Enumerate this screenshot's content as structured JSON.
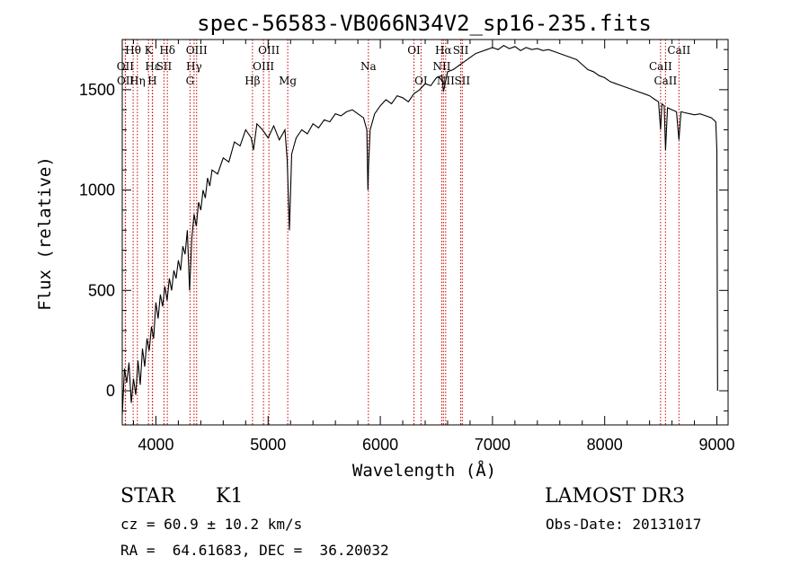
{
  "chart_data": {
    "type": "line",
    "title": "spec-56583-VB066N34V2_sp16-235.fits",
    "xlabel": "Wavelength (Å)",
    "ylabel": "Flux (relative)",
    "xlim": [
      3700,
      9100
    ],
    "ylim": [
      -170,
      1750
    ],
    "x_ticks": [
      4000,
      5000,
      6000,
      7000,
      8000,
      9000
    ],
    "y_ticks": [
      0,
      500,
      1000,
      1500
    ],
    "x_tick_labels": [
      "4000",
      "5000",
      "6000",
      "7000",
      "8000",
      "9000"
    ],
    "y_tick_labels": [
      "0",
      "500",
      "1000",
      "1500"
    ],
    "series": [
      {
        "name": "spectrum",
        "points": [
          [
            3700,
            -120
          ],
          [
            3720,
            110
          ],
          [
            3740,
            40
          ],
          [
            3760,
            140
          ],
          [
            3780,
            -60
          ],
          [
            3800,
            60
          ],
          [
            3820,
            -20
          ],
          [
            3840,
            150
          ],
          [
            3860,
            30
          ],
          [
            3880,
            210
          ],
          [
            3900,
            120
          ],
          [
            3920,
            260
          ],
          [
            3940,
            200
          ],
          [
            3960,
            320
          ],
          [
            3980,
            260
          ],
          [
            4000,
            440
          ],
          [
            4020,
            360
          ],
          [
            4040,
            480
          ],
          [
            4060,
            420
          ],
          [
            4080,
            520
          ],
          [
            4100,
            450
          ],
          [
            4120,
            560
          ],
          [
            4140,
            500
          ],
          [
            4160,
            600
          ],
          [
            4180,
            560
          ],
          [
            4200,
            650
          ],
          [
            4220,
            600
          ],
          [
            4240,
            720
          ],
          [
            4260,
            680
          ],
          [
            4280,
            800
          ],
          [
            4300,
            500
          ],
          [
            4320,
            760
          ],
          [
            4340,
            880
          ],
          [
            4360,
            820
          ],
          [
            4380,
            940
          ],
          [
            4400,
            900
          ],
          [
            4420,
            1000
          ],
          [
            4440,
            960
          ],
          [
            4460,
            1060
          ],
          [
            4480,
            1020
          ],
          [
            4500,
            1100
          ],
          [
            4550,
            1080
          ],
          [
            4600,
            1160
          ],
          [
            4650,
            1140
          ],
          [
            4700,
            1240
          ],
          [
            4750,
            1220
          ],
          [
            4800,
            1300
          ],
          [
            4850,
            1260
          ],
          [
            4870,
            1200
          ],
          [
            4900,
            1330
          ],
          [
            4950,
            1300
          ],
          [
            5000,
            1260
          ],
          [
            5050,
            1320
          ],
          [
            5100,
            1250
          ],
          [
            5150,
            1300
          ],
          [
            5170,
            1150
          ],
          [
            5190,
            800
          ],
          [
            5210,
            1180
          ],
          [
            5250,
            1260
          ],
          [
            5300,
            1300
          ],
          [
            5350,
            1280
          ],
          [
            5400,
            1330
          ],
          [
            5450,
            1310
          ],
          [
            5500,
            1350
          ],
          [
            5550,
            1340
          ],
          [
            5600,
            1380
          ],
          [
            5650,
            1370
          ],
          [
            5700,
            1390
          ],
          [
            5750,
            1400
          ],
          [
            5800,
            1380
          ],
          [
            5850,
            1360
          ],
          [
            5880,
            1300
          ],
          [
            5890,
            1000
          ],
          [
            5895,
            1120
          ],
          [
            5910,
            1300
          ],
          [
            5950,
            1380
          ],
          [
            6000,
            1420
          ],
          [
            6050,
            1450
          ],
          [
            6100,
            1430
          ],
          [
            6150,
            1470
          ],
          [
            6200,
            1460
          ],
          [
            6250,
            1440
          ],
          [
            6300,
            1480
          ],
          [
            6350,
            1500
          ],
          [
            6400,
            1530
          ],
          [
            6450,
            1520
          ],
          [
            6500,
            1560
          ],
          [
            6550,
            1570
          ],
          [
            6563,
            1490
          ],
          [
            6600,
            1590
          ],
          [
            6650,
            1600
          ],
          [
            6700,
            1620
          ],
          [
            6750,
            1640
          ],
          [
            6800,
            1660
          ],
          [
            6850,
            1680
          ],
          [
            6900,
            1690
          ],
          [
            6950,
            1700
          ],
          [
            7000,
            1710
          ],
          [
            7050,
            1700
          ],
          [
            7100,
            1720
          ],
          [
            7150,
            1705
          ],
          [
            7200,
            1715
          ],
          [
            7250,
            1695
          ],
          [
            7300,
            1710
          ],
          [
            7350,
            1700
          ],
          [
            7400,
            1705
          ],
          [
            7450,
            1695
          ],
          [
            7500,
            1700
          ],
          [
            7550,
            1690
          ],
          [
            7600,
            1680
          ],
          [
            7650,
            1670
          ],
          [
            7700,
            1660
          ],
          [
            7750,
            1650
          ],
          [
            7800,
            1625
          ],
          [
            7850,
            1600
          ],
          [
            7900,
            1590
          ],
          [
            7950,
            1570
          ],
          [
            8000,
            1560
          ],
          [
            8050,
            1540
          ],
          [
            8100,
            1530
          ],
          [
            8150,
            1520
          ],
          [
            8200,
            1510
          ],
          [
            8250,
            1500
          ],
          [
            8300,
            1490
          ],
          [
            8350,
            1480
          ],
          [
            8400,
            1470
          ],
          [
            8450,
            1450
          ],
          [
            8480,
            1440
          ],
          [
            8498,
            1300
          ],
          [
            8510,
            1430
          ],
          [
            8530,
            1420
          ],
          [
            8542,
            1200
          ],
          [
            8560,
            1410
          ],
          [
            8600,
            1400
          ],
          [
            8640,
            1390
          ],
          [
            8662,
            1250
          ],
          [
            8680,
            1390
          ],
          [
            8720,
            1385
          ],
          [
            8760,
            1380
          ],
          [
            8800,
            1375
          ],
          [
            8850,
            1380
          ],
          [
            8900,
            1370
          ],
          [
            8950,
            1360
          ],
          [
            8990,
            1340
          ],
          [
            9000,
            1200
          ],
          [
            9005,
            300
          ],
          [
            9006,
            0
          ]
        ]
      }
    ],
    "lines": [
      {
        "label": "Hθ",
        "x": 3797,
        "color": "#cc0000",
        "label_y": 30
      },
      {
        "label": "OII",
        "x": 3727,
        "color": "#cc0000",
        "label_y": 48
      },
      {
        "label": "OII",
        "x": 3729,
        "color": "#cc0000",
        "label_y": 64
      },
      {
        "label": "K",
        "x": 3934,
        "color": "#cc0000",
        "label_y": 30
      },
      {
        "label": "H",
        "x": 3968,
        "color": "#cc0000",
        "label_y": 64
      },
      {
        "label": "Hε",
        "x": 3970,
        "color": "#cc0000",
        "label_y": 48
      },
      {
        "label": "Hη",
        "x": 3835,
        "color": "#cc0000",
        "label_y": 64
      },
      {
        "label": "SII",
        "x": 4072,
        "color": "#cc0000",
        "label_y": 48
      },
      {
        "label": "Hδ",
        "x": 4102,
        "color": "#cc0000",
        "label_y": 30
      },
      {
        "label": "OIII",
        "x": 4363,
        "color": "#cc0000",
        "label_y": 30
      },
      {
        "label": "Hγ",
        "x": 4340,
        "color": "#cc0000",
        "label_y": 48
      },
      {
        "label": "G",
        "x": 4304,
        "color": "#cc0000",
        "label_y": 64
      },
      {
        "label": "Hβ",
        "x": 4861,
        "color": "#cc0000",
        "label_y": 64
      },
      {
        "label": "OIII",
        "x": 5007,
        "color": "#cc0000",
        "label_y": 30
      },
      {
        "label": "OIII",
        "x": 4959,
        "color": "#cc0000",
        "label_y": 48
      },
      {
        "label": "Mg",
        "x": 5175,
        "color": "#cc0000",
        "label_y": 64
      },
      {
        "label": "Na",
        "x": 5894,
        "color": "#cc0000",
        "label_y": 48
      },
      {
        "label": "OI",
        "x": 6300,
        "color": "#cc0000",
        "label_y": 30
      },
      {
        "label": "OI",
        "x": 6363,
        "color": "#cc0000",
        "label_y": 64
      },
      {
        "label": "Hα",
        "x": 6563,
        "color": "#cc0000",
        "label_y": 30
      },
      {
        "label": "NII",
        "x": 6548,
        "color": "#cc0000",
        "label_y": 48
      },
      {
        "label": "NII",
        "x": 6583,
        "color": "#cc0000",
        "label_y": 64
      },
      {
        "label": "SII",
        "x": 6717,
        "color": "#cc0000",
        "label_y": 30
      },
      {
        "label": "SII",
        "x": 6731,
        "color": "#cc0000",
        "label_y": 64
      },
      {
        "label": "CaII",
        "x": 8662,
        "color": "#cc0000",
        "label_y": 30
      },
      {
        "label": "CaII",
        "x": 8498,
        "color": "#cc0000",
        "label_y": 48
      },
      {
        "label": "CaII",
        "x": 8542,
        "color": "#cc0000",
        "label_y": 64
      }
    ]
  },
  "info": {
    "object_type": "STAR",
    "subclass": "K1",
    "survey": "LAMOST DR3",
    "cz": "cz = 60.9 ± 10.2 km/s",
    "obs_date": "Obs-Date: 20131017",
    "coords": "RA =  64.61683, DEC =  36.20032"
  }
}
